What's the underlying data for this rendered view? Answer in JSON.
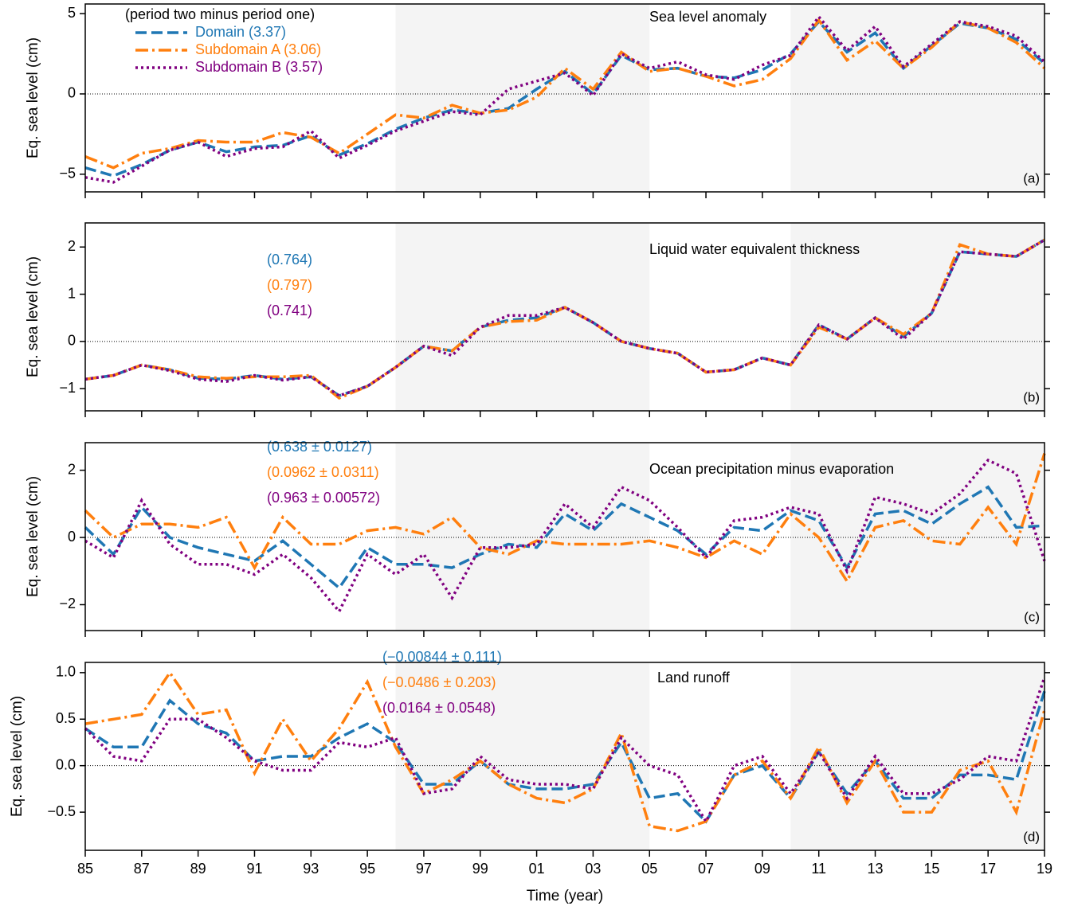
{
  "chart_data": [
    {
      "type": "line",
      "title": "Sea level anomaly",
      "panel_label": "(a)",
      "ylabel": "Eq. sea level (cm)",
      "legend_title": "(period two minus period one)",
      "x": [
        1985,
        1986,
        1987,
        1988,
        1989,
        1990,
        1991,
        1992,
        1993,
        1994,
        1995,
        1996,
        1997,
        1998,
        1999,
        2000,
        2001,
        2002,
        2003,
        2004,
        2005,
        2006,
        2007,
        2008,
        2009,
        2010,
        2011,
        2012,
        2013,
        2014,
        2015,
        2016,
        2017,
        2018,
        2019
      ],
      "xlim": [
        1985,
        2019
      ],
      "ylim": [
        -6.1,
        5.6
      ],
      "yticks": [
        {
          "value": -5,
          "label": "−5"
        },
        0,
        5
      ],
      "shaded_periods": [
        [
          1996,
          2005
        ],
        [
          2010,
          2019
        ]
      ],
      "series": [
        {
          "name": "Domain (3.37)",
          "color": "#1f77b4",
          "linestyle": "dashed",
          "values": [
            -4.6,
            -5.1,
            -4.4,
            -3.5,
            -3.0,
            -3.6,
            -3.3,
            -3.2,
            -2.6,
            -3.8,
            -3.1,
            -2.2,
            -1.5,
            -1.0,
            -1.2,
            -0.9,
            0.3,
            1.4,
            0.0,
            2.4,
            1.5,
            1.6,
            1.1,
            1.0,
            1.5,
            2.5,
            4.5,
            2.6,
            3.8,
            1.6,
            3.0,
            4.4,
            4.1,
            3.4,
            1.9
          ]
        },
        {
          "name": "Subdomain A (3.06)",
          "color": "#ff7f0e",
          "linestyle": "dashdot",
          "values": [
            -3.9,
            -4.6,
            -3.7,
            -3.4,
            -2.9,
            -3.0,
            -3.0,
            -2.4,
            -2.7,
            -3.7,
            -2.5,
            -1.3,
            -1.5,
            -0.7,
            -1.2,
            -1.0,
            -0.2,
            1.6,
            0.3,
            2.6,
            1.4,
            1.6,
            1.1,
            0.5,
            0.9,
            2.2,
            4.6,
            2.1,
            3.3,
            1.6,
            2.9,
            4.5,
            4.1,
            3.2,
            1.6
          ]
        },
        {
          "name": "Subdomain B (3.57)",
          "color": "#800080",
          "linestyle": "dotted",
          "values": [
            -5.2,
            -5.5,
            -4.5,
            -3.5,
            -3.0,
            -3.9,
            -3.4,
            -3.3,
            -2.3,
            -4.0,
            -3.2,
            -2.3,
            -1.7,
            -1.1,
            -1.3,
            0.3,
            0.8,
            1.3,
            -0.1,
            2.5,
            1.6,
            2.0,
            1.2,
            0.9,
            1.8,
            2.4,
            4.8,
            2.7,
            4.2,
            1.7,
            3.1,
            4.5,
            4.2,
            3.6,
            2.0
          ]
        }
      ]
    },
    {
      "type": "line",
      "title": "Liquid water equivalent thickness",
      "panel_label": "(b)",
      "ylabel": "Eq. sea level (cm)",
      "x": [
        1985,
        1986,
        1987,
        1988,
        1989,
        1990,
        1991,
        1992,
        1993,
        1994,
        1995,
        1996,
        1997,
        1998,
        1999,
        2000,
        2001,
        2002,
        2003,
        2004,
        2005,
        2006,
        2007,
        2008,
        2009,
        2010,
        2011,
        2012,
        2013,
        2014,
        2015,
        2016,
        2017,
        2018,
        2019
      ],
      "xlim": [
        1985,
        2019
      ],
      "ylim": [
        -1.47,
        2.51
      ],
      "yticks": [
        {
          "value": -1,
          "label": "−1"
        },
        0,
        1,
        2
      ],
      "shaded_periods": [
        [
          1996,
          2005
        ],
        [
          2010,
          2019
        ]
      ],
      "series": [
        {
          "label": "(0.764)",
          "color": "#1f77b4",
          "linestyle": "dashed",
          "values": [
            -0.8,
            -0.72,
            -0.5,
            -0.6,
            -0.78,
            -0.8,
            -0.72,
            -0.8,
            -0.75,
            -1.15,
            -0.95,
            -0.55,
            -0.1,
            -0.2,
            0.3,
            0.45,
            0.5,
            0.72,
            0.4,
            0.0,
            -0.15,
            -0.25,
            -0.65,
            -0.6,
            -0.35,
            -0.5,
            0.35,
            0.05,
            0.5,
            0.1,
            0.6,
            1.9,
            1.85,
            1.8,
            2.15
          ]
        },
        {
          "label": "(0.797)",
          "color": "#ff7f0e",
          "linestyle": "dashdot",
          "values": [
            -0.8,
            -0.72,
            -0.5,
            -0.6,
            -0.75,
            -0.78,
            -0.75,
            -0.75,
            -0.72,
            -1.2,
            -0.95,
            -0.55,
            -0.1,
            -0.2,
            0.3,
            0.42,
            0.45,
            0.72,
            0.4,
            0.0,
            -0.15,
            -0.25,
            -0.65,
            -0.6,
            -0.35,
            -0.5,
            0.3,
            0.05,
            0.5,
            0.15,
            0.6,
            2.05,
            1.85,
            1.8,
            2.15
          ]
        },
        {
          "label": "(0.741)",
          "color": "#800080",
          "linestyle": "dotted",
          "values": [
            -0.8,
            -0.72,
            -0.5,
            -0.62,
            -0.8,
            -0.85,
            -0.72,
            -0.82,
            -0.75,
            -1.15,
            -0.95,
            -0.55,
            -0.1,
            -0.3,
            0.3,
            0.55,
            0.55,
            0.72,
            0.4,
            0.0,
            -0.15,
            -0.25,
            -0.65,
            -0.6,
            -0.35,
            -0.5,
            0.35,
            0.05,
            0.5,
            0.05,
            0.6,
            1.9,
            1.85,
            1.8,
            2.15
          ]
        }
      ]
    },
    {
      "type": "line",
      "title": "Ocean precipitation minus evaporation",
      "panel_label": "(c)",
      "ylabel": "Eq. sea level (cm)",
      "x": [
        1985,
        1986,
        1987,
        1988,
        1989,
        1990,
        1991,
        1992,
        1993,
        1994,
        1995,
        1996,
        1997,
        1998,
        1999,
        2000,
        2001,
        2002,
        2003,
        2004,
        2005,
        2006,
        2007,
        2008,
        2009,
        2010,
        2011,
        2012,
        2013,
        2014,
        2015,
        2016,
        2017,
        2018,
        2019
      ],
      "xlim": [
        1985,
        2019
      ],
      "ylim": [
        -2.77,
        2.82
      ],
      "yticks": [
        {
          "value": -2,
          "label": "−2"
        },
        0,
        2
      ],
      "shaded_periods": [
        [
          1996,
          2005
        ],
        [
          2010,
          2019
        ]
      ],
      "series": [
        {
          "label": "(0.638 ± 0.0127)",
          "color": "#1f77b4",
          "linestyle": "dashed",
          "values": [
            0.3,
            -0.5,
            0.9,
            0.0,
            -0.3,
            -0.5,
            -0.7,
            -0.1,
            -0.8,
            -1.5,
            -0.3,
            -0.8,
            -0.8,
            -0.9,
            -0.5,
            -0.2,
            -0.3,
            0.7,
            0.2,
            1.0,
            0.6,
            0.2,
            -0.5,
            0.3,
            0.2,
            0.8,
            0.5,
            -0.9,
            0.7,
            0.8,
            0.4,
            1.0,
            1.5,
            0.3,
            0.35
          ]
        },
        {
          "label": "(0.0962 ± 0.0311)",
          "color": "#ff7f0e",
          "linestyle": "dashdot",
          "values": [
            0.8,
            0.0,
            0.4,
            0.4,
            0.3,
            0.6,
            -0.9,
            0.6,
            -0.2,
            -0.2,
            0.2,
            0.3,
            0.1,
            0.6,
            -0.3,
            -0.5,
            -0.1,
            -0.2,
            -0.2,
            -0.2,
            -0.1,
            -0.3,
            -0.6,
            -0.1,
            -0.5,
            0.7,
            0.0,
            -1.3,
            0.3,
            0.5,
            -0.1,
            -0.2,
            0.9,
            -0.2,
            2.5
          ]
        },
        {
          "label": "(0.963 ± 0.00572)",
          "color": "#800080",
          "linestyle": "dotted",
          "values": [
            -0.1,
            -0.6,
            1.1,
            -0.2,
            -0.8,
            -0.8,
            -1.1,
            -0.5,
            -1.2,
            -2.2,
            -0.5,
            -1.1,
            -0.5,
            -1.8,
            -0.3,
            -0.3,
            -0.2,
            1.0,
            0.3,
            1.5,
            1.1,
            0.3,
            -0.6,
            0.5,
            0.6,
            0.9,
            0.7,
            -1.0,
            1.2,
            1.0,
            0.7,
            1.3,
            2.3,
            1.9,
            -0.7
          ]
        }
      ]
    },
    {
      "type": "line",
      "title": "Land runoff",
      "panel_label": "(d)",
      "ylabel": "Eq. sea level (cm)",
      "xlabel": "Time (year)",
      "x": [
        1985,
        1986,
        1987,
        1988,
        1989,
        1990,
        1991,
        1992,
        1993,
        1994,
        1995,
        1996,
        1997,
        1998,
        1999,
        2000,
        2001,
        2002,
        2003,
        2004,
        2005,
        2006,
        2007,
        2008,
        2009,
        2010,
        2011,
        2012,
        2013,
        2014,
        2015,
        2016,
        2017,
        2018,
        2019
      ],
      "xlim": [
        1985,
        2019
      ],
      "ylim": [
        -0.91,
        1.11
      ],
      "yticks": [
        {
          "value": -0.5,
          "label": "−0.5"
        },
        {
          "value": 0,
          "label": "0.0"
        },
        0.5,
        {
          "value": 1,
          "label": "1.0"
        }
      ],
      "xticks": [
        {
          "value": 1985,
          "label": "85"
        },
        {
          "value": 1987,
          "label": "87"
        },
        {
          "value": 1989,
          "label": "89"
        },
        {
          "value": 1991,
          "label": "91"
        },
        {
          "value": 1993,
          "label": "93"
        },
        {
          "value": 1995,
          "label": "95"
        },
        {
          "value": 1997,
          "label": "97"
        },
        {
          "value": 1999,
          "label": "99"
        },
        {
          "value": 2001,
          "label": "01"
        },
        {
          "value": 2003,
          "label": "03"
        },
        {
          "value": 2005,
          "label": "05"
        },
        {
          "value": 2007,
          "label": "07"
        },
        {
          "value": 2009,
          "label": "09"
        },
        {
          "value": 2011,
          "label": "11"
        },
        {
          "value": 2013,
          "label": "13"
        },
        {
          "value": 2015,
          "label": "15"
        },
        {
          "value": 2017,
          "label": "17"
        },
        {
          "value": 2019,
          "label": "19"
        }
      ],
      "shaded_periods": [
        [
          1996,
          2005
        ],
        [
          2010,
          2019
        ]
      ],
      "series": [
        {
          "label": "(−0.00844 ± 0.111)",
          "color": "#1f77b4",
          "linestyle": "dashed",
          "values": [
            0.4,
            0.2,
            0.2,
            0.7,
            0.45,
            0.35,
            0.05,
            0.1,
            0.1,
            0.3,
            0.45,
            0.25,
            -0.2,
            -0.2,
            0.05,
            -0.2,
            -0.25,
            -0.25,
            -0.2,
            0.25,
            -0.35,
            -0.3,
            -0.6,
            -0.1,
            0.0,
            -0.35,
            0.15,
            -0.3,
            0.05,
            -0.35,
            -0.35,
            -0.1,
            -0.1,
            -0.15,
            0.8
          ]
        },
        {
          "label": "(−0.0486 ± 0.203)",
          "color": "#ff7f0e",
          "linestyle": "dashdot",
          "values": [
            0.45,
            0.5,
            0.55,
            1.0,
            0.55,
            0.6,
            -0.08,
            0.5,
            0.05,
            0.4,
            0.9,
            0.2,
            -0.3,
            -0.15,
            0.05,
            -0.2,
            -0.35,
            -0.4,
            -0.25,
            0.35,
            -0.65,
            -0.7,
            -0.6,
            -0.1,
            0.05,
            -0.35,
            0.2,
            -0.4,
            0.05,
            -0.5,
            -0.5,
            -0.05,
            0.05,
            -0.5,
            0.6
          ]
        },
        {
          "label": "(0.0164 ± 0.0548)",
          "color": "#800080",
          "linestyle": "dotted",
          "values": [
            0.4,
            0.1,
            0.05,
            0.5,
            0.5,
            0.3,
            0.05,
            -0.05,
            -0.05,
            0.25,
            0.2,
            0.3,
            -0.3,
            -0.25,
            0.1,
            -0.15,
            -0.2,
            -0.2,
            -0.25,
            0.3,
            0.0,
            -0.1,
            -0.6,
            0.0,
            0.1,
            -0.3,
            0.15,
            -0.35,
            0.1,
            -0.3,
            -0.3,
            -0.15,
            0.1,
            0.05,
            0.95
          ]
        }
      ]
    }
  ]
}
